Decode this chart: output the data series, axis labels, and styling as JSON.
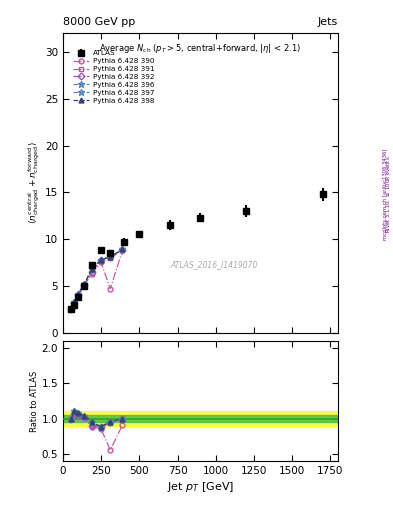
{
  "title_top": "8000 GeV pp",
  "title_right": "Jets",
  "plot_title": "Average $N_{\\rm ch}$ ($p_T$$>$5, central+forward, $|\\eta|$ < 2.1)",
  "xlabel": "Jet $p_T$ [GeV]",
  "ylabel_main": "$\\langle n^{\\rm central}_{\\rm charged} + n^{\\rm forward}_{\\rm charged} \\rangle$",
  "ylabel_ratio": "Ratio to ATLAS",
  "watermark": "ATLAS_2016_I1419070",
  "atlas_x": [
    55,
    75,
    100,
    140,
    190,
    250,
    310,
    400,
    500,
    700,
    900,
    1200,
    1700
  ],
  "atlas_y": [
    2.5,
    3.0,
    3.8,
    5.0,
    7.2,
    8.8,
    8.5,
    9.7,
    10.5,
    11.5,
    12.3,
    13.0,
    14.8
  ],
  "atlas_yerr": [
    0.2,
    0.2,
    0.2,
    0.3,
    0.3,
    0.3,
    0.3,
    0.4,
    0.4,
    0.5,
    0.5,
    0.6,
    0.7
  ],
  "py390_x": [
    55,
    75,
    100,
    140,
    190,
    250,
    310,
    390
  ],
  "py390_y": [
    2.5,
    3.2,
    4.0,
    5.1,
    6.3,
    7.5,
    4.7,
    8.8
  ],
  "py390_color": "#cc5599",
  "py390_label": "Pythia 6.428 390",
  "py391_x": [
    55,
    75,
    100,
    140,
    190,
    250,
    310,
    390
  ],
  "py391_y": [
    2.5,
    3.2,
    4.0,
    5.1,
    6.4,
    7.7,
    8.0,
    8.8
  ],
  "py391_color": "#cc5599",
  "py391_label": "Pythia 6.428 391",
  "py392_x": [
    55,
    75,
    100,
    140,
    190,
    250,
    310,
    390
  ],
  "py392_y": [
    2.5,
    3.2,
    4.0,
    5.1,
    6.5,
    7.8,
    8.1,
    8.85
  ],
  "py392_color": "#9955cc",
  "py392_label": "Pythia 6.428 392",
  "py396_x": [
    55,
    75,
    100,
    140,
    190,
    250,
    310,
    390
  ],
  "py396_y": [
    2.5,
    3.3,
    4.1,
    5.2,
    6.8,
    7.8,
    8.1,
    8.9
  ],
  "py396_color": "#5588bb",
  "py396_label": "Pythia 6.428 396",
  "py397_x": [
    55,
    75,
    100,
    140,
    190,
    250,
    310,
    390
  ],
  "py397_y": [
    2.5,
    3.3,
    4.1,
    5.2,
    6.8,
    7.8,
    8.1,
    8.9
  ],
  "py397_color": "#5588bb",
  "py397_label": "Pythia 6.428 397",
  "py398_x": [
    55,
    75,
    100,
    140,
    190,
    250,
    310,
    390
  ],
  "py398_y": [
    2.5,
    3.3,
    4.1,
    5.2,
    6.8,
    7.8,
    8.1,
    8.9
  ],
  "py398_color": "#334477",
  "py398_label": "Pythia 6.428 398",
  "ratio390_x": [
    55,
    75,
    100,
    140,
    190,
    250,
    310,
    390
  ],
  "ratio390_y": [
    1.0,
    1.07,
    1.05,
    1.02,
    0.875,
    0.852,
    0.553,
    0.91
  ],
  "ratio391_x": [
    55,
    75,
    100,
    140,
    190,
    250,
    310,
    390
  ],
  "ratio391_y": [
    1.0,
    1.07,
    1.05,
    1.02,
    0.89,
    0.875,
    0.94,
    1.0
  ],
  "ratio392_x": [
    55,
    75,
    100,
    140,
    190,
    250,
    310,
    390
  ],
  "ratio392_y": [
    1.0,
    1.07,
    1.05,
    1.02,
    0.9,
    0.885,
    0.953,
    1.0
  ],
  "ratio396_x": [
    55,
    75,
    100,
    140,
    190,
    250,
    310,
    390
  ],
  "ratio396_y": [
    1.0,
    1.1,
    1.08,
    1.04,
    0.944,
    0.886,
    0.953,
    1.0
  ],
  "ratio397_x": [
    55,
    75,
    100,
    140,
    190,
    250,
    310,
    390
  ],
  "ratio397_y": [
    1.0,
    1.1,
    1.08,
    1.04,
    0.944,
    0.886,
    0.953,
    1.0
  ],
  "ratio398_x": [
    55,
    75,
    100,
    140,
    190,
    250,
    310,
    390
  ],
  "ratio398_y": [
    1.0,
    1.1,
    1.08,
    1.04,
    0.944,
    0.886,
    0.953,
    1.0
  ],
  "xlim": [
    0,
    1800
  ],
  "ylim_main": [
    0,
    32
  ],
  "ylim_ratio": [
    0.4,
    2.1
  ],
  "green_band": [
    0.95,
    1.05
  ],
  "yellow_band": [
    0.9,
    1.1
  ]
}
